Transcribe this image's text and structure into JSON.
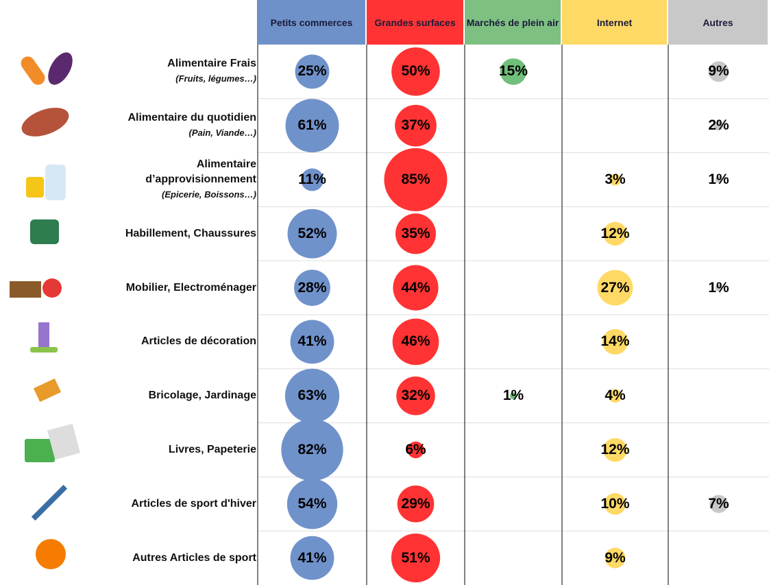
{
  "chart_data": {
    "type": "bubble_table",
    "categories": [
      "Alimentaire Frais",
      "Alimentaire du quotidien",
      "Alimentaire d’approvisionnement",
      "Habillement, Chaussures",
      "Mobilier, Electroménager",
      "Articles de décoration",
      "Bricolage, Jardinage",
      "Livres, Papeterie",
      "Articles de sport d'hiver",
      "Autres Articles de sport"
    ],
    "subtitles": [
      "(Fruits, légumes…)",
      "(Pain, Viande…)",
      "(Epicerie, Boissons…)",
      null,
      null,
      null,
      null,
      null,
      null,
      null
    ],
    "series": [
      {
        "name": "Petits commerces",
        "color": "#7092cb",
        "header_color": "#6f91c9",
        "values": [
          25,
          61,
          11,
          52,
          28,
          41,
          63,
          82,
          54,
          41
        ],
        "value_labels": [
          "25%",
          "61%",
          "11%",
          "52%",
          "28%",
          "41%",
          "63%",
          "82%",
          "54%",
          "41%"
        ]
      },
      {
        "name": "Grandes surfaces",
        "color": "#ff3333",
        "header_color": "#ff3333",
        "values": [
          50,
          37,
          85,
          35,
          44,
          46,
          32,
          6,
          29,
          51
        ],
        "value_labels": [
          "50%",
          "37%",
          "85%",
          "35%",
          "44%",
          "46%",
          "32%",
          "6%",
          "29%",
          "51%"
        ]
      },
      {
        "name": "Marchés de plein air",
        "color": "#70bf7a",
        "header_color": "#7ec082",
        "values": [
          15,
          null,
          null,
          null,
          null,
          null,
          1,
          null,
          null,
          null
        ],
        "value_labels": [
          "15%",
          null,
          null,
          null,
          null,
          null,
          "1%",
          null,
          null,
          null
        ]
      },
      {
        "name": "Internet",
        "color": "#ffd966",
        "header_color": "#ffd966",
        "values": [
          null,
          null,
          3,
          12,
          27,
          14,
          4,
          12,
          10,
          9
        ],
        "value_labels": [
          null,
          null,
          "3%",
          "12%",
          "27%",
          "14%",
          "4%",
          "12%",
          "10%",
          "9%"
        ]
      },
      {
        "name": "Autres",
        "color": "#c8c8c8",
        "header_color": "#c8c8c8",
        "values": [
          9,
          2,
          1,
          null,
          1,
          null,
          null,
          null,
          7,
          null
        ],
        "value_labels": [
          "9%",
          "2%",
          "1%",
          null,
          "1%",
          null,
          null,
          null,
          "7%",
          null
        ]
      }
    ]
  }
}
